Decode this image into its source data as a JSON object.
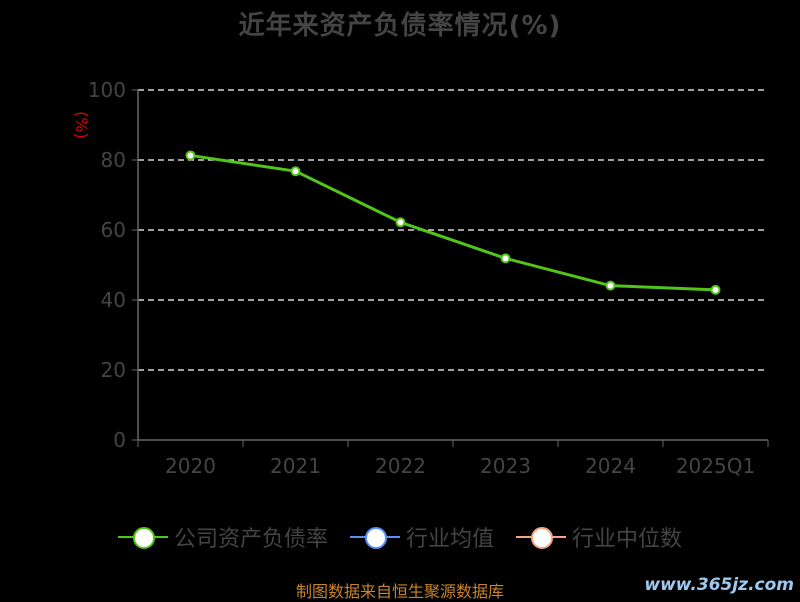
{
  "title": "近年来资产负债率情况(%)",
  "chart_data": {
    "type": "line",
    "title": "近年来资产负债率情况(%)",
    "ylabel": "(%)",
    "xlabel": "",
    "categories": [
      "2020",
      "2021",
      "2022",
      "2023",
      "2024",
      "2025Q1"
    ],
    "ylim": [
      0,
      100
    ],
    "yticks": [
      "0",
      "20",
      "40",
      "60",
      "80",
      "100"
    ],
    "grid": true,
    "series": [
      {
        "name": "公司资产负债率",
        "values": [
          81.3,
          76.8,
          62.2,
          51.9,
          44.1,
          42.9
        ],
        "color": "#52c41a"
      }
    ],
    "legend_position": "bottom"
  },
  "legend": [
    {
      "label": "公司资产负债率",
      "color": "#52c41a",
      "icon": "green-circle-marker"
    },
    {
      "label": "行业均值",
      "color": "#5b8ff9",
      "icon": "blue-circle-marker"
    },
    {
      "label": "行业中位数",
      "color": "#f4a582",
      "icon": "orange-circle-marker"
    }
  ],
  "source": "制图数据来自恒生聚源数据库",
  "watermark": "www.365jz.com",
  "colors": {
    "background": "#000000",
    "axis": "#666666",
    "grid": "#ffffff",
    "text": "#444444",
    "ylabel": "#dd0000",
    "source": "#c8842a"
  }
}
